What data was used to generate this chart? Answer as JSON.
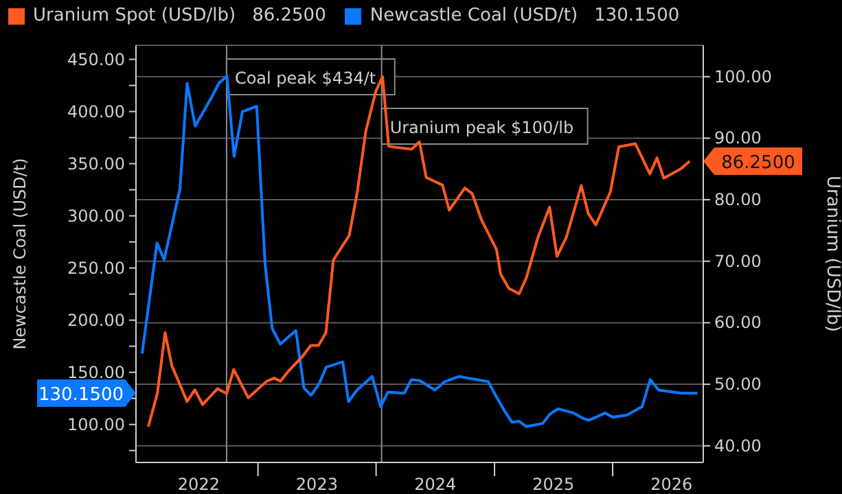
{
  "chart_data": {
    "type": "line",
    "ylabel": "Newcastle Coal (USD/t)",
    "y2label": "Uranium (USD/lb)",
    "legend": "top left",
    "grid": "y",
    "marker": "none",
    "line_style": "solid",
    "xlim": [
      "2021-12-20",
      "2026-10-08"
    ],
    "xticks": [
      {
        "value": "2022-07-02",
        "label": "2022"
      },
      {
        "value": "2023-01-01",
        "label": null
      },
      {
        "value": "2023-07-02",
        "label": "2023"
      },
      {
        "value": "2024-01-01",
        "label": null
      },
      {
        "value": "2024-07-02",
        "label": "2024"
      },
      {
        "value": "2025-01-01",
        "label": null
      },
      {
        "value": "2025-07-02",
        "label": "2025"
      },
      {
        "value": "2026-01-01",
        "label": null
      },
      {
        "value": "2026-07-02",
        "label": "2026"
      }
    ],
    "ylim": [
      63.6,
      463.5
    ],
    "yticks": [
      {
        "value": 75,
        "label": null
      },
      {
        "value": 100,
        "label": "100.00"
      },
      {
        "value": 125,
        "label": null
      },
      {
        "value": 150,
        "label": "150.00"
      },
      {
        "value": 175,
        "label": null
      },
      {
        "value": 200,
        "label": "200.00"
      },
      {
        "value": 225,
        "label": null
      },
      {
        "value": 250,
        "label": "250.00"
      },
      {
        "value": 275,
        "label": null
      },
      {
        "value": 300,
        "label": "300.00"
      },
      {
        "value": 325,
        "label": null
      },
      {
        "value": 350,
        "label": "350.00"
      },
      {
        "value": 375,
        "label": null
      },
      {
        "value": 400,
        "label": "400.00"
      },
      {
        "value": 425,
        "label": null
      },
      {
        "value": 450,
        "label": "450.00"
      }
    ],
    "y2lim": [
      37.3,
      105.1
    ],
    "y2ticks": [
      {
        "value": 40,
        "label": "40.00"
      },
      {
        "value": 50,
        "label": "50.00"
      },
      {
        "value": 60,
        "label": "60.00"
      },
      {
        "value": 70,
        "label": "70.00"
      },
      {
        "value": 80,
        "label": "80.00"
      },
      {
        "value": 90,
        "label": "90.00"
      },
      {
        "value": 100,
        "label": "100.00"
      }
    ],
    "ref_lines": [
      {
        "axis": "x",
        "value": "2022-09-26",
        "label": "Coal peak $434/t",
        "color": "#8c8c8c"
      },
      {
        "axis": "x",
        "value": "2024-01-18",
        "label": "Uranium peak $100/lb",
        "color": "#8c8c8c"
      }
    ],
    "series": [
      {
        "name": "Uranium Spot (USD/lb)",
        "color": "#ff5a1f",
        "axis": "y2",
        "x": [
          "2022-01-27",
          "2022-02-24",
          "2022-03-20",
          "2022-04-10",
          "2022-05-27",
          "2022-06-20",
          "2022-07-14",
          "2022-08-29",
          "2022-09-26",
          "2022-10-18",
          "2022-12-02",
          "2023-01-28",
          "2023-02-20",
          "2023-03-11",
          "2023-04-06",
          "2023-05-18",
          "2023-06-13",
          "2023-07-07",
          "2023-07-30",
          "2023-08-22",
          "2023-10-10",
          "2023-11-04",
          "2023-11-30",
          "2023-12-31",
          "2024-01-21",
          "2024-02-09",
          "2024-03-04",
          "2024-04-20",
          "2024-05-14",
          "2024-06-04",
          "2024-07-24",
          "2024-08-14",
          "2024-10-01",
          "2024-10-24",
          "2024-11-21",
          "2025-01-07",
          "2025-01-20",
          "2025-02-14",
          "2025-03-18",
          "2025-04-10",
          "2025-05-14",
          "2025-06-20",
          "2025-07-13",
          "2025-08-11",
          "2025-09-26",
          "2025-10-18",
          "2025-11-10",
          "2025-12-25",
          "2026-01-20",
          "2026-03-12",
          "2026-04-26",
          "2026-05-18",
          "2026-06-08",
          "2026-07-30",
          "2026-08-27"
        ],
        "values": [
          43.1,
          48.5,
          58.4,
          53.0,
          47.2,
          49.1,
          46.7,
          49.3,
          48.5,
          52.4,
          47.8,
          50.5,
          51.0,
          50.5,
          52.2,
          54.5,
          56.3,
          56.3,
          58.4,
          70.2,
          74.2,
          81.3,
          91.1,
          97.6,
          100,
          88.7,
          88.5,
          88.2,
          89.4,
          83.6,
          82.4,
          78.3,
          81.9,
          81.0,
          76.8,
          71.9,
          67.9,
          65.6,
          64.7,
          67.4,
          73.7,
          78.8,
          70.8,
          73.9,
          82.3,
          77.7,
          75.9,
          81.3,
          88.6,
          89.1,
          84.2,
          86.8,
          83.5,
          85.0,
          86.25
        ]
      },
      {
        "name": "Newcastle Coal (USD/t)",
        "color": "#0a78ff",
        "axis": "y",
        "x": [
          "2022-01-08",
          "2022-02-23",
          "2022-03-17",
          "2022-05-05",
          "2022-05-27",
          "2022-06-21",
          "2022-08-06",
          "2022-09-02",
          "2022-09-27",
          "2022-10-19",
          "2022-11-14",
          "2022-12-28",
          "2023-01-23",
          "2023-02-14",
          "2023-03-11",
          "2023-04-28",
          "2023-05-23",
          "2023-06-14",
          "2023-07-09",
          "2023-07-31",
          "2023-09-20",
          "2023-10-08",
          "2023-11-03",
          "2023-12-20",
          "2024-01-15",
          "2024-02-06",
          "2024-03-28",
          "2024-04-19",
          "2024-05-15",
          "2024-07-01",
          "2024-07-31",
          "2024-09-13",
          "2024-12-13",
          "2025-01-04",
          "2025-01-30",
          "2025-02-24",
          "2025-03-18",
          "2025-04-09",
          "2025-05-30",
          "2025-06-21",
          "2025-07-16",
          "2025-09-02",
          "2025-10-01",
          "2025-10-19",
          "2025-12-09",
          "2026-01-01",
          "2026-02-14",
          "2026-04-02",
          "2026-04-27",
          "2026-05-23",
          "2026-07-31",
          "2026-09-20"
        ],
        "values": [
          168,
          274,
          258,
          326,
          427,
          386,
          411,
          427,
          434,
          357,
          400,
          405,
          253,
          192,
          177,
          190,
          135,
          128,
          139,
          155,
          160,
          122,
          133,
          146,
          117,
          131,
          130,
          143,
          142,
          133,
          141,
          146,
          141,
          128,
          114,
          102,
          103,
          98,
          101,
          110,
          115,
          111,
          106,
          104,
          111,
          107,
          109,
          117,
          143,
          133,
          130,
          130
        ]
      }
    ],
    "annotations": [
      "86.2500",
      "130.1500"
    ]
  }
}
